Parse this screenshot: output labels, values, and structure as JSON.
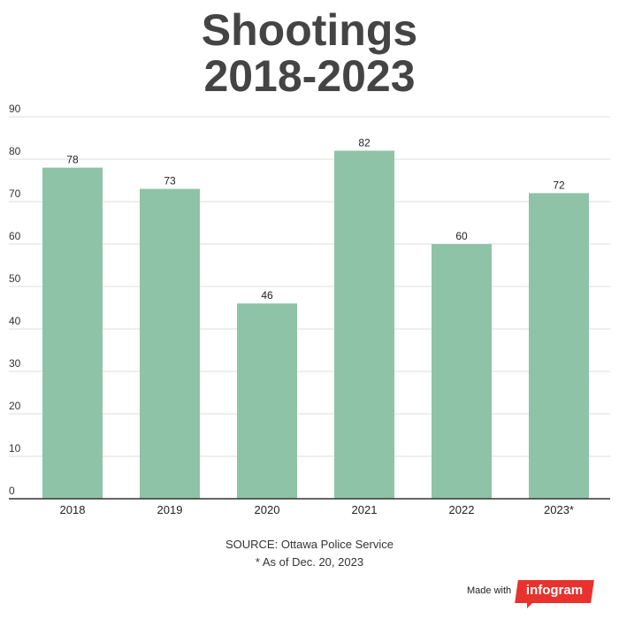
{
  "title_lines": [
    "Shootings",
    "2018-2023"
  ],
  "chart_data": {
    "type": "bar",
    "title": "Shootings 2018-2023",
    "categories": [
      "2018",
      "2019",
      "2020",
      "2021",
      "2022",
      "2023*"
    ],
    "values": [
      78,
      73,
      46,
      82,
      60,
      72
    ],
    "yticks": [
      0,
      10,
      20,
      30,
      40,
      50,
      60,
      70,
      80,
      90
    ],
    "ylim": [
      0,
      90
    ],
    "xlabel": "",
    "ylabel": "",
    "grid": true,
    "legend": "none",
    "bar_color": "#8fc3a8"
  },
  "footer": {
    "source": "SOURCE: Ottawa Police Service",
    "note": "* As of Dec. 20, 2023",
    "made_with": "Made with",
    "brand": "infogram"
  },
  "colors": {
    "title": "#444444",
    "brand": "#e8322e"
  }
}
